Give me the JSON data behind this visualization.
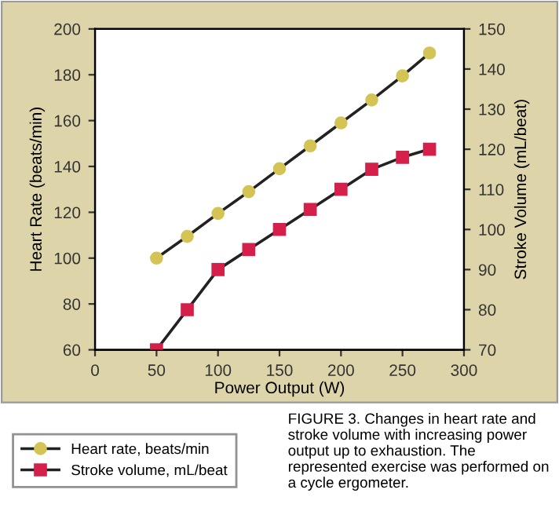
{
  "chart_data": {
    "type": "line",
    "xlabel": "Power Output (W)",
    "ylabel": "Heart Rate (beats/min)",
    "y2label": "Stroke Volume (mL/beat)",
    "x": [
      50,
      75,
      100,
      125,
      150,
      175,
      200,
      225,
      250,
      272
    ],
    "series": [
      {
        "name": "Heart rate, beats/min",
        "color": "#d4c455",
        "marker": "circle",
        "values": [
          100,
          109.5,
          119.5,
          129,
          139,
          149,
          159,
          169,
          179.5,
          189.5
        ]
      },
      {
        "name": "Stroke volume, mL/beat",
        "color": "#d4204a",
        "marker": "square",
        "axis": "y2",
        "values": [
          70,
          80,
          90,
          95,
          100,
          105,
          110,
          115,
          118,
          120
        ]
      }
    ],
    "xlim": [
      0,
      300
    ],
    "xticks": [
      0,
      50,
      100,
      150,
      200,
      250,
      300
    ],
    "ylim": [
      60,
      200
    ],
    "yticks": [
      60,
      80,
      100,
      120,
      140,
      160,
      180,
      200
    ],
    "y2lim": [
      70,
      150
    ],
    "y2ticks": [
      70,
      80,
      90,
      100,
      110,
      120,
      130,
      140,
      150
    ],
    "legend": "bottom left",
    "grid": false,
    "annotations": [
      "FIGURE 3. Changes in heart rate and stroke volume with increasing power output up to exhaustion. The represented exercise was performed on a cycle ergometer."
    ]
  }
}
